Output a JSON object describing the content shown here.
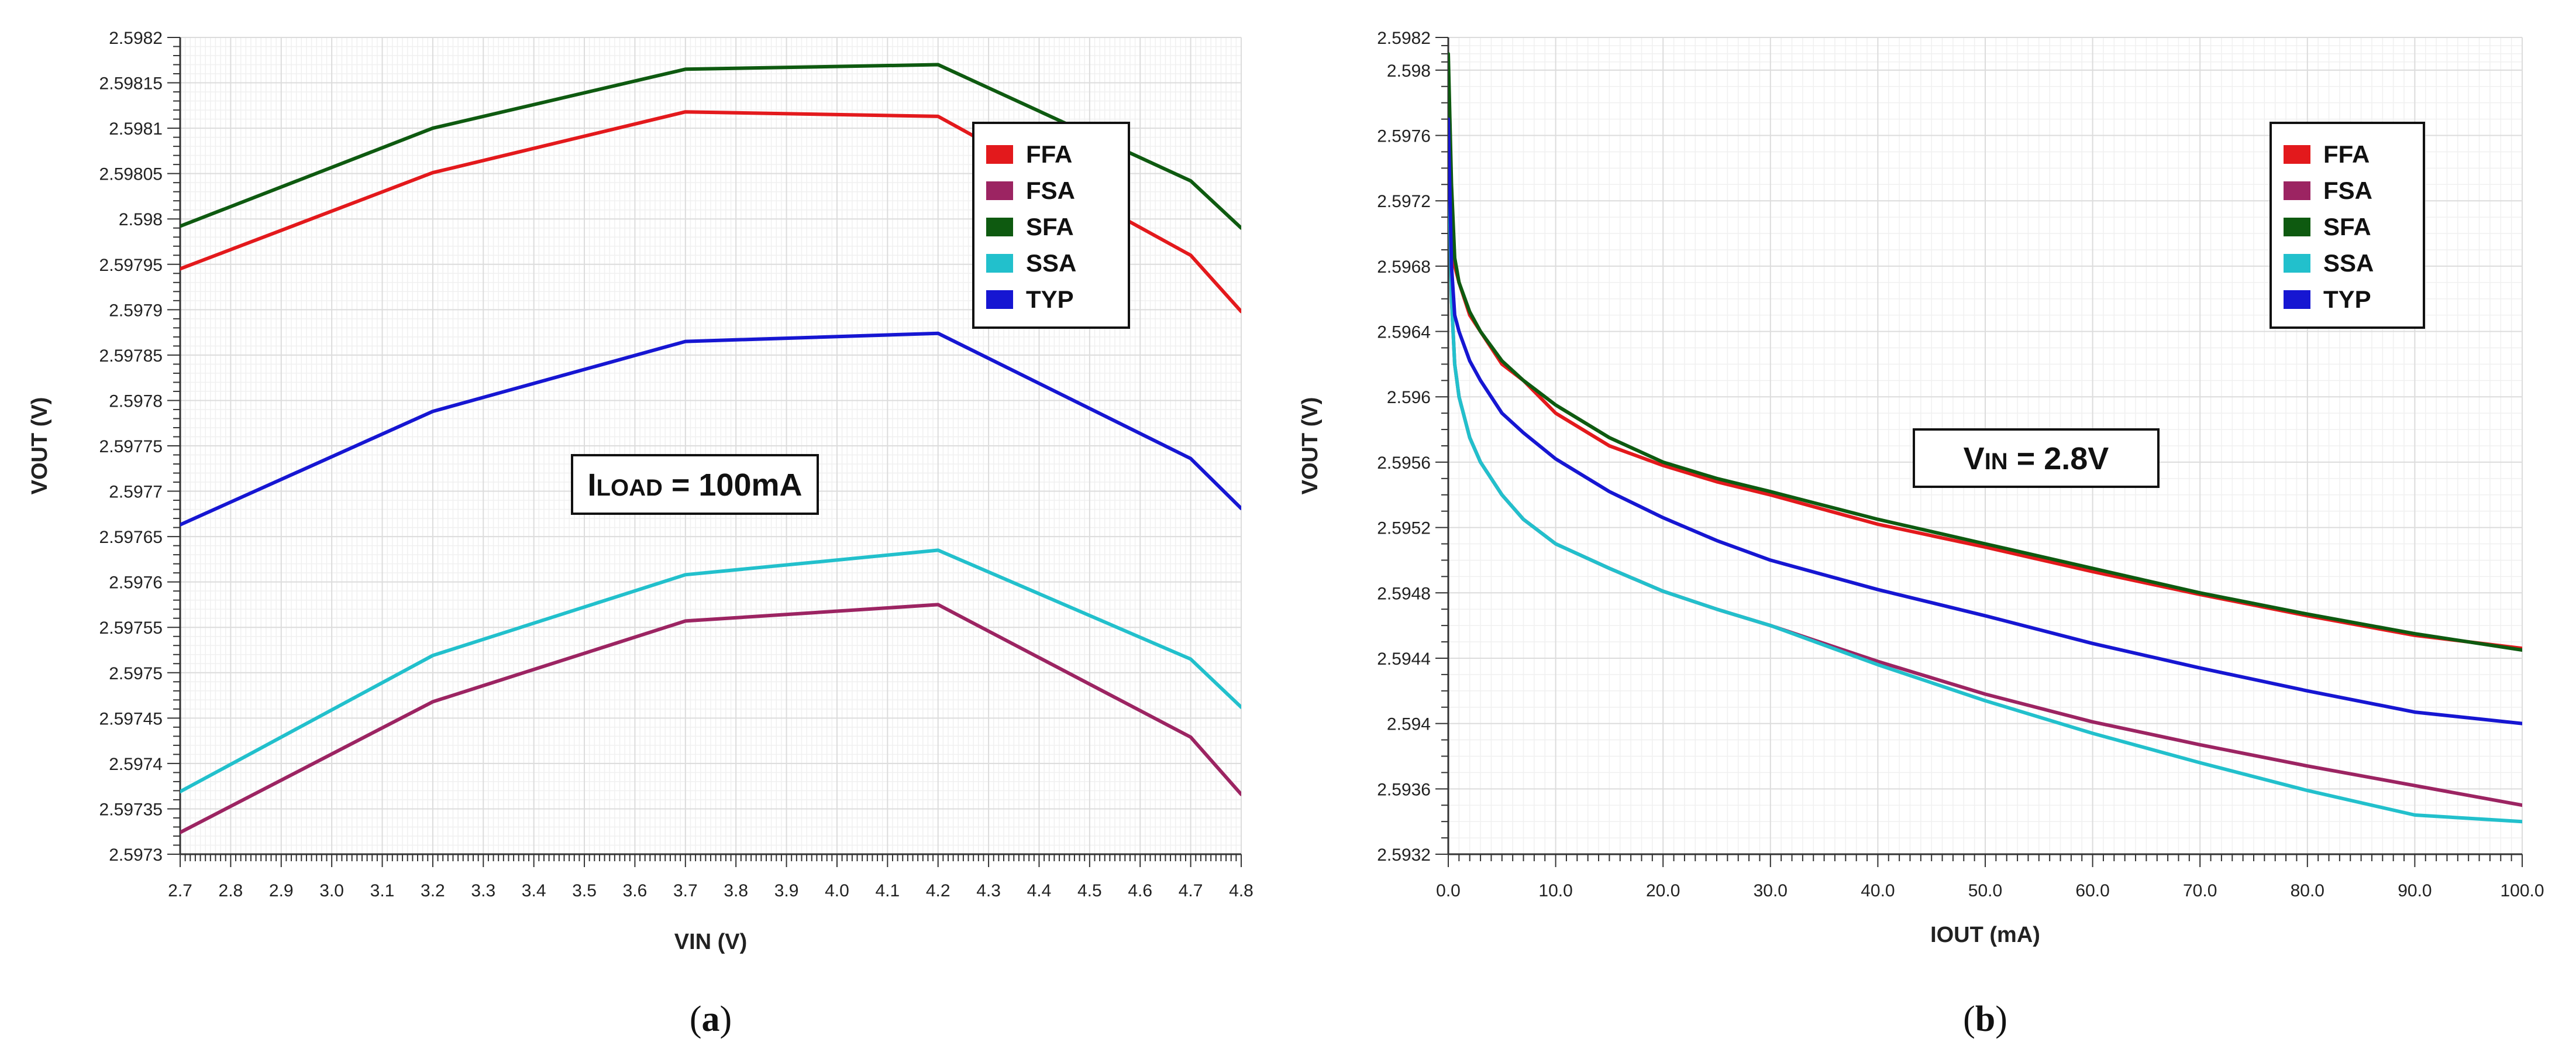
{
  "chart_data": [
    {
      "type": "line",
      "panel_label": "(a)",
      "panel_letter": "a",
      "title": "",
      "xlabel": "VIN (V)",
      "ylabel": "VOUT (V)",
      "xlim": [
        2.7,
        4.8
      ],
      "ylim": [
        2.5973,
        2.5982
      ],
      "grid": true,
      "x_ticks": [
        "2.7",
        "2.8",
        "2.9",
        "3.0",
        "3.1",
        "3.2",
        "3.3",
        "3.4",
        "3.5",
        "3.6",
        "3.7",
        "3.8",
        "3.9",
        "4.0",
        "4.1",
        "4.2",
        "4.3",
        "4.4",
        "4.5",
        "4.6",
        "4.7",
        "4.8"
      ],
      "y_ticks": [
        "2.5973",
        "2.59735",
        "2.5974",
        "2.59745",
        "2.5975",
        "2.59755",
        "2.5976",
        "2.59765",
        "2.5977",
        "2.59775",
        "2.5978",
        "2.59785",
        "2.5979",
        "2.59795",
        "2.598",
        "2.59805",
        "2.5981",
        "2.59815",
        "2.5982"
      ],
      "annotation": {
        "main": "I",
        "sub": "LOAD",
        "rest": " = 100mA"
      },
      "legend_position": "top-right",
      "x": [
        2.7,
        3.2,
        3.7,
        4.2,
        4.7,
        4.8
      ],
      "series": [
        {
          "name": "FFA",
          "color": "#e3191c",
          "values": [
            2.597945,
            2.598051,
            2.598118,
            2.598113,
            2.59796,
            2.597898
          ]
        },
        {
          "name": "FSA",
          "color": "#9c2462",
          "values": [
            2.597324,
            2.597468,
            2.597557,
            2.597575,
            2.597429,
            2.597366
          ]
        },
        {
          "name": "SFA",
          "color": "#0e5a10",
          "values": [
            2.597992,
            2.5981,
            2.598165,
            2.59817,
            2.598042,
            2.59799
          ]
        },
        {
          "name": "SSA",
          "color": "#22c0cc",
          "values": [
            2.597369,
            2.597519,
            2.597608,
            2.597635,
            2.597515,
            2.597462
          ]
        },
        {
          "name": "TYP",
          "color": "#1616d2",
          "values": [
            2.597663,
            2.597788,
            2.597865,
            2.597874,
            2.597736,
            2.597681
          ]
        }
      ]
    },
    {
      "type": "line",
      "panel_label": "(b)",
      "panel_letter": "b",
      "title": "",
      "xlabel": "IOUT (mA)",
      "ylabel": "VOUT (V)",
      "xlim": [
        0,
        100
      ],
      "ylim": [
        2.5932,
        2.5982
      ],
      "grid": true,
      "x_ticks": [
        "0.0",
        "10.0",
        "20.0",
        "30.0",
        "40.0",
        "50.0",
        "60.0",
        "70.0",
        "80.0",
        "90.0",
        "100.0"
      ],
      "y_ticks": [
        "2.5932",
        "2.5936",
        "2.594",
        "2.5944",
        "2.5948",
        "2.5952",
        "2.5956",
        "2.596",
        "2.5964",
        "2.5968",
        "2.5972",
        "2.5976",
        "2.598",
        "2.5982"
      ],
      "annotation": {
        "main": "V",
        "sub": "IN",
        "rest": " = 2.8V"
      },
      "legend_position": "top-right",
      "x": [
        0,
        0.3,
        0.6,
        1,
        2,
        3,
        5,
        7,
        10,
        15,
        20,
        25,
        30,
        40,
        50,
        60,
        70,
        80,
        90,
        100
      ],
      "series": [
        {
          "name": "FFA",
          "color": "#e3191c",
          "values": [
            2.5978,
            2.5972,
            2.5968,
            2.5967,
            2.5965,
            2.5964,
            2.5962,
            2.5961,
            2.5959,
            2.5957,
            2.59558,
            2.59548,
            2.5954,
            2.59522,
            2.59508,
            2.59493,
            2.59479,
            2.59466,
            2.59454,
            2.59446
          ]
        },
        {
          "name": "FSA",
          "color": "#9c2462",
          "values": [
            2.5976,
            2.5966,
            2.5962,
            2.596,
            2.59575,
            2.5956,
            2.5954,
            2.59525,
            2.5951,
            2.59495,
            2.59481,
            2.5947,
            2.5946,
            2.59438,
            2.59418,
            2.59401,
            2.59387,
            2.59374,
            2.59362,
            2.5935
          ]
        },
        {
          "name": "SFA",
          "color": "#0e5a10",
          "values": [
            2.5981,
            2.5973,
            2.59685,
            2.5967,
            2.59652,
            2.5964,
            2.59622,
            2.5961,
            2.59595,
            2.59575,
            2.5956,
            2.5955,
            2.59542,
            2.59525,
            2.5951,
            2.59495,
            2.5948,
            2.59467,
            2.59455,
            2.59445
          ]
        },
        {
          "name": "SSA",
          "color": "#22c0cc",
          "values": [
            2.5976,
            2.5966,
            2.5962,
            2.596,
            2.59575,
            2.5956,
            2.5954,
            2.59525,
            2.5951,
            2.59495,
            2.59481,
            2.5947,
            2.5946,
            2.59436,
            2.59414,
            2.59394,
            2.59376,
            2.59359,
            2.59344,
            2.5934
          ]
        },
        {
          "name": "TYP",
          "color": "#1616d2",
          "values": [
            2.5977,
            2.5968,
            2.5965,
            2.5964,
            2.59622,
            2.5961,
            2.5959,
            2.59578,
            2.59562,
            2.59542,
            2.59526,
            2.59512,
            2.595,
            2.59482,
            2.59466,
            2.59449,
            2.59434,
            2.5942,
            2.59407,
            2.594
          ]
        }
      ]
    }
  ]
}
